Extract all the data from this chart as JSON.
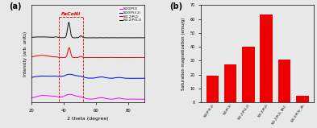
{
  "panel_a": {
    "label": "(a)",
    "xlabel": "2 theta (degree)",
    "ylabel": "Intensity (arb. units)",
    "xlim": [
      20,
      90
    ],
    "xticks": [
      20,
      40,
      60,
      80
    ],
    "legend_labels": [
      "S(20)P(2)",
      "S(20)P(3.2)",
      "S(0.2)P(2)",
      "S(0.2)P(0.2)"
    ],
    "legend_colors": [
      "#FF00FF",
      "#0000EE",
      "#EE0000",
      "#111111"
    ],
    "feconi_label": "FeCoNi",
    "feconi_color": "#DD0000",
    "feconi_x1": 37,
    "feconi_x2": 52,
    "offsets": [
      2.8,
      1.9,
      0.95,
      0.0
    ],
    "bg_color": "#e8e8e8"
  },
  "panel_b": {
    "label": "(b)",
    "ylabel": "Saturation magnetization (emu/g)",
    "ylim": [
      0,
      70
    ],
    "yticks": [
      0,
      10,
      20,
      30,
      40,
      50,
      60,
      70
    ],
    "bar_color": "#EE0000",
    "categories": [
      "S(0)P(0.2)",
      "S(0)P(3)",
      "S(0.2)P(0.2)",
      "S(0.2)P(2)",
      "S(0.2)P(3)_BSC",
      "S(0.2)P(3)_4h"
    ],
    "values": [
      19,
      27.5,
      40,
      63,
      31,
      4.5
    ],
    "bg_color": "#e8e8e8"
  }
}
